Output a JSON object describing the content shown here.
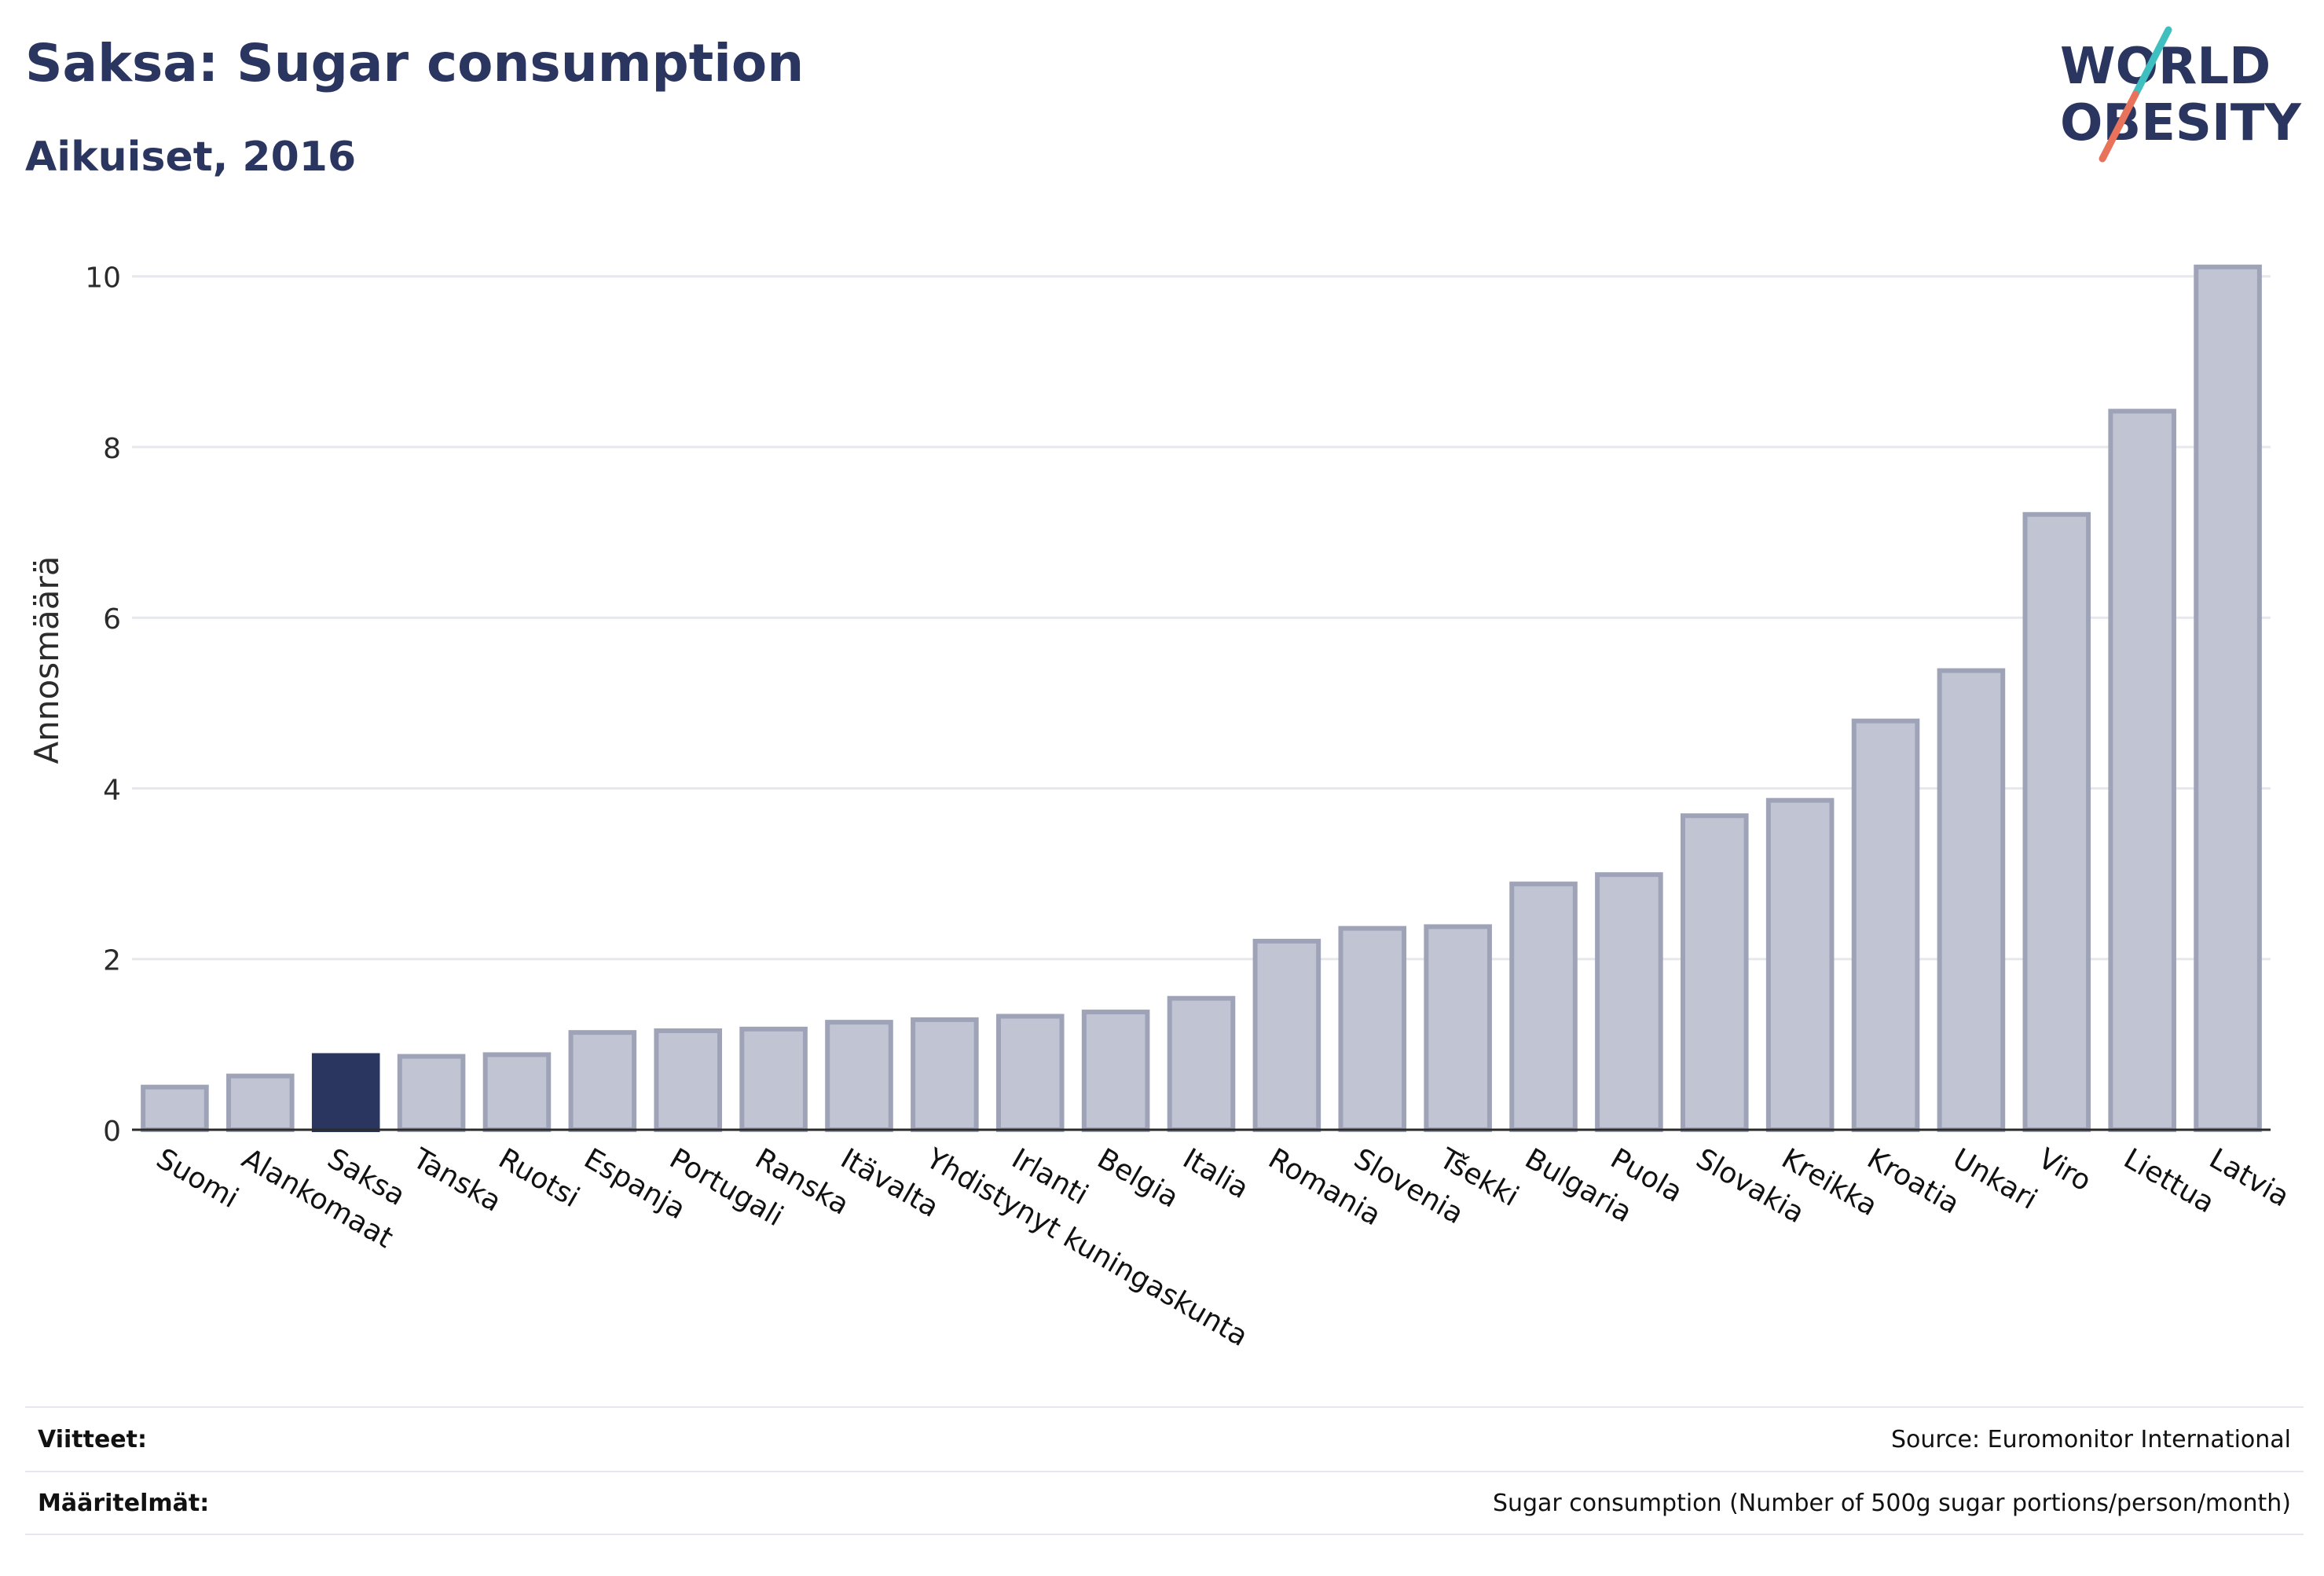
{
  "header": {
    "title": "Saksa: Sugar consumption",
    "subtitle": "Aikuiset, 2016"
  },
  "logo": {
    "line1": "WORLD",
    "line2": "OBESITY",
    "accent_teal": "#3fbfbf",
    "accent_coral": "#e8735a",
    "text_color": "#2a3560"
  },
  "chart_data": {
    "type": "bar",
    "title": "Saksa: Sugar consumption",
    "subtitle": "Aikuiset, 2016",
    "xlabel": "",
    "ylabel": "Annosmäärä",
    "ylim": [
      0,
      10.2
    ],
    "yticks": [
      0,
      2,
      4,
      6,
      8,
      10
    ],
    "grid": true,
    "highlight": "Saksa",
    "colors": {
      "bar": "#c1c5d3",
      "bar_edge": "#9ea3b8",
      "highlight": "#2a3560",
      "grid": "#e6e8ee",
      "axis": "#2b2b2b"
    },
    "categories": [
      "Suomi",
      "Alankomaat",
      "Saksa",
      "Tanska",
      "Ruotsi",
      "Espanja",
      "Portugali",
      "Ranska",
      "Itävalta",
      "Yhdistynyt kuningaskunta",
      "Irlanti",
      "Belgia",
      "Italia",
      "Romania",
      "Slovenia",
      "Tšekki",
      "Bulgaria",
      "Puola",
      "Slovakia",
      "Kreikka",
      "Kroatia",
      "Unkari",
      "Viro",
      "Liettua",
      "Latvia"
    ],
    "values": [
      0.5,
      0.63,
      0.87,
      0.86,
      0.88,
      1.14,
      1.16,
      1.18,
      1.26,
      1.29,
      1.33,
      1.38,
      1.54,
      2.21,
      2.36,
      2.38,
      2.88,
      2.99,
      3.68,
      3.86,
      4.79,
      5.38,
      7.21,
      8.42,
      10.11
    ]
  },
  "footer": {
    "references_label": "Viitteet:",
    "references_value": "Source: Euromonitor International",
    "definitions_label": "Määritelmät:",
    "definitions_value": "Sugar consumption (Number of 500g sugar portions/person/month)"
  }
}
